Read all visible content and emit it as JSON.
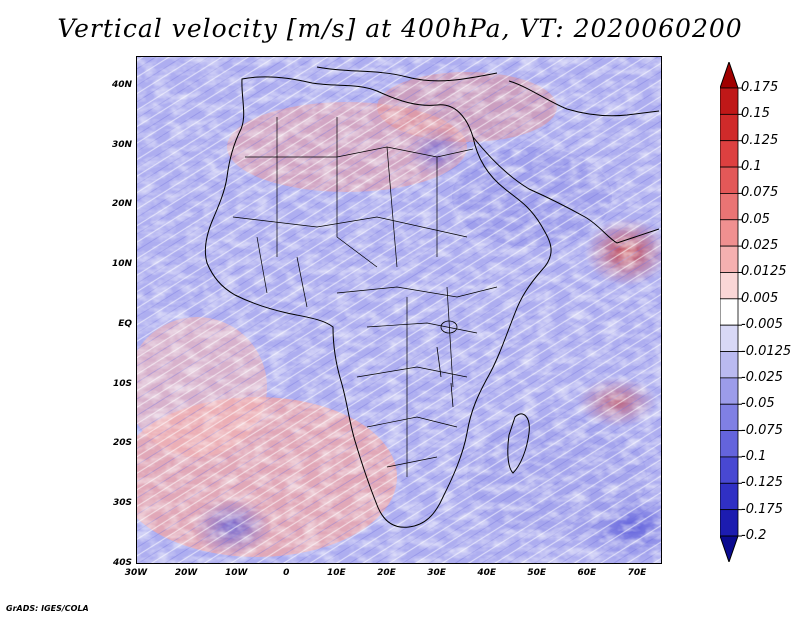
{
  "title": "Vertical velocity [m/s] at 400hPa, VT: 2020060200",
  "map": {
    "lon_labels": [
      "30W",
      "20W",
      "10W",
      "0",
      "10E",
      "20E",
      "30E",
      "40E",
      "50E",
      "60E",
      "70E"
    ],
    "lat_labels": [
      "40N",
      "30N",
      "20N",
      "10N",
      "EQ",
      "10S",
      "20S",
      "30S",
      "40S"
    ],
    "lon_range": [
      -30,
      75
    ],
    "lat_range": [
      -40,
      45
    ],
    "field": "vertical velocity",
    "level": "400hPa",
    "warm_color": "#e06060",
    "cool_color": "#6a6ae0"
  },
  "colorbar": {
    "labels": [
      "0.175",
      "0.15",
      "0.125",
      "0.1",
      "0.075",
      "0.05",
      "0.025",
      "0.0125",
      "0.005",
      "-0.005",
      "-0.0125",
      "-0.025",
      "-0.05",
      "-0.075",
      "-0.1",
      "-0.125",
      "-0.175",
      "-0.2"
    ],
    "colors": [
      "#a00000",
      "#c01818",
      "#d02a2a",
      "#dd4040",
      "#e35858",
      "#ea7474",
      "#f09090",
      "#f5b0b0",
      "#fad6d6",
      "#ffffff",
      "#d8d8f6",
      "#babaf0",
      "#9c9cea",
      "#8080e4",
      "#6464dc",
      "#4848d2",
      "#3030c4",
      "#1c1cb0",
      "#0a0a90"
    ]
  },
  "credit": "GrADS: IGES/COLA"
}
